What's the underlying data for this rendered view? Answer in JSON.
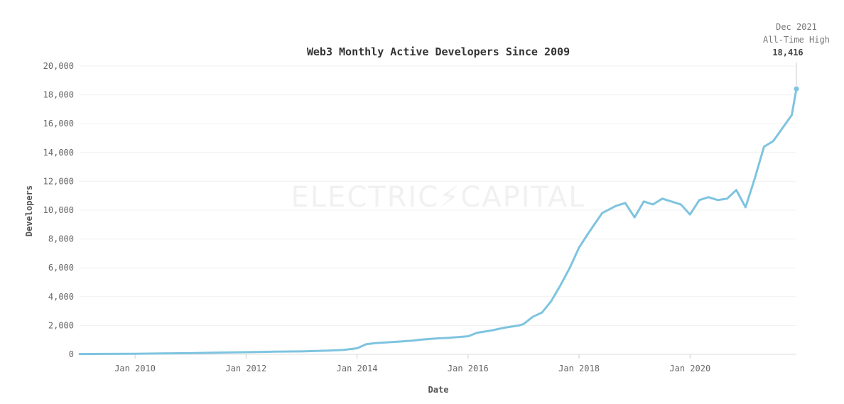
{
  "chart_data": {
    "type": "line",
    "title": "Web3 Monthly Active Developers Since 2009",
    "xlabel": "Date",
    "ylabel": "Developers",
    "ylim": [
      0,
      20000
    ],
    "yticks": [
      0,
      2000,
      4000,
      6000,
      8000,
      10000,
      12000,
      14000,
      16000,
      18000,
      20000
    ],
    "ytick_labels": [
      "0",
      "2,000",
      "4,000",
      "6,000",
      "8,000",
      "10,000",
      "12,000",
      "14,000",
      "16,000",
      "18,000",
      "20,000"
    ],
    "xlim": [
      "2009-01",
      "2021-12"
    ],
    "xticks": [
      "2010-01",
      "2012-01",
      "2014-01",
      "2016-01",
      "2018-01",
      "2020-01"
    ],
    "xtick_labels": [
      "Jan 2010",
      "Jan 2012",
      "Jan 2014",
      "Jan 2016",
      "Jan 2018",
      "Jan 2020"
    ],
    "grid": true,
    "watermark": "ELECTRIC⚡CAPITAL",
    "line_color": "#7ec4e0",
    "annotation": {
      "line1": "Dec 2021",
      "line2": "All-Time High",
      "value_label": "18,416",
      "x": "2021-12",
      "y": 18416
    },
    "series": [
      {
        "x": [
          "2009-01",
          "2009-07",
          "2010-01",
          "2010-07",
          "2011-01",
          "2011-07",
          "2012-01",
          "2012-07",
          "2013-01",
          "2013-07",
          "2013-10",
          "2014-01",
          "2014-03",
          "2014-05",
          "2014-07",
          "2014-10",
          "2015-01",
          "2015-03",
          "2015-06",
          "2015-09",
          "2016-01",
          "2016-03",
          "2016-06",
          "2016-09",
          "2016-12",
          "2017-01",
          "2017-03",
          "2017-05",
          "2017-07",
          "2017-09",
          "2017-11",
          "2018-01",
          "2018-03",
          "2018-06",
          "2018-09",
          "2018-11",
          "2019-01",
          "2019-03",
          "2019-05",
          "2019-07",
          "2019-09",
          "2019-11",
          "2020-01",
          "2020-03",
          "2020-05",
          "2020-07",
          "2020-09",
          "2020-11",
          "2021-01",
          "2021-03",
          "2021-05",
          "2021-07",
          "2021-09",
          "2021-11",
          "2021-12"
        ],
        "y": [
          20,
          30,
          40,
          60,
          80,
          120,
          150,
          180,
          200,
          260,
          300,
          420,
          700,
          780,
          820,
          880,
          950,
          1020,
          1100,
          1150,
          1250,
          1500,
          1650,
          1850,
          2000,
          2100,
          2600,
          2900,
          3700,
          4800,
          6000,
          7400,
          8400,
          9800,
          10300,
          10500,
          9500,
          10600,
          10400,
          10800,
          10600,
          10400,
          9700,
          10700,
          10900,
          10700,
          10800,
          11400,
          10200,
          12200,
          14400,
          14800,
          15700,
          16600,
          18416
        ]
      }
    ]
  }
}
